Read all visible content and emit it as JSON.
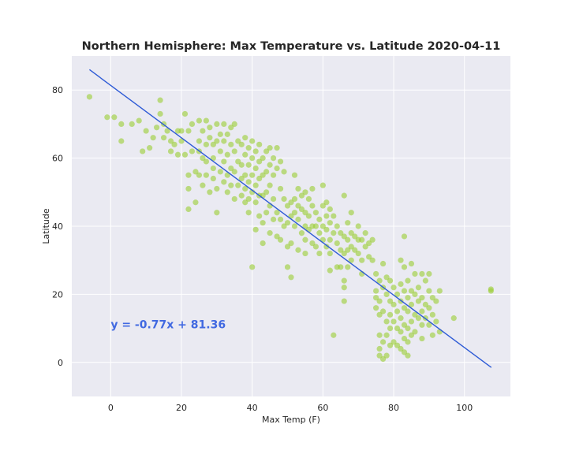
{
  "chart_data": {
    "type": "scatter",
    "title": "Northern Hemisphere: Max Temperature vs. Latitude 2020-04-11",
    "xlabel": "Max Temp (F)",
    "ylabel": "Latitude",
    "xlim": [
      -11,
      113
    ],
    "ylim": [
      -10,
      90
    ],
    "xticks": [
      0,
      20,
      40,
      60,
      80,
      100
    ],
    "yticks": [
      0,
      20,
      40,
      60,
      80
    ],
    "grid": true,
    "background": "#eaeaf2",
    "point_color": "#9acd32",
    "line_color": "#2e5bd6",
    "equation_color": "#4169e1",
    "regression": {
      "slope": -0.77,
      "intercept": 81.36,
      "x_range": [
        -6,
        107.6
      ]
    },
    "equation_text": "y = -0.77x + 81.36",
    "equation_anchor": [
      0,
      10
    ],
    "points": [
      [
        -6,
        78
      ],
      [
        -1,
        72
      ],
      [
        1,
        72
      ],
      [
        3,
        70
      ],
      [
        3,
        65
      ],
      [
        6,
        70
      ],
      [
        8,
        71
      ],
      [
        9,
        62
      ],
      [
        10,
        68
      ],
      [
        11,
        63
      ],
      [
        12,
        66
      ],
      [
        13,
        69
      ],
      [
        14,
        77
      ],
      [
        14,
        73
      ],
      [
        15,
        70
      ],
      [
        15,
        66
      ],
      [
        16,
        68
      ],
      [
        17,
        65
      ],
      [
        17,
        62
      ],
      [
        18,
        64
      ],
      [
        19,
        68
      ],
      [
        19,
        61
      ],
      [
        20,
        68
      ],
      [
        20,
        65
      ],
      [
        21,
        73
      ],
      [
        21,
        61
      ],
      [
        22,
        68
      ],
      [
        22,
        55
      ],
      [
        22,
        51
      ],
      [
        22,
        45
      ],
      [
        23,
        70
      ],
      [
        23,
        62
      ],
      [
        24,
        56
      ],
      [
        24,
        47
      ],
      [
        25,
        71
      ],
      [
        25,
        65
      ],
      [
        25,
        62
      ],
      [
        25,
        55
      ],
      [
        26,
        68
      ],
      [
        26,
        60
      ],
      [
        26,
        52
      ],
      [
        27,
        71
      ],
      [
        27,
        64
      ],
      [
        27,
        59
      ],
      [
        27,
        55
      ],
      [
        28,
        69
      ],
      [
        28,
        66
      ],
      [
        28,
        50
      ],
      [
        29,
        64
      ],
      [
        29,
        60
      ],
      [
        29,
        57
      ],
      [
        29,
        54
      ],
      [
        30,
        70
      ],
      [
        30,
        65
      ],
      [
        30,
        51
      ],
      [
        30,
        44
      ],
      [
        31,
        67
      ],
      [
        31,
        62
      ],
      [
        31,
        56
      ],
      [
        32,
        70
      ],
      [
        32,
        65
      ],
      [
        32,
        59
      ],
      [
        32,
        53
      ],
      [
        33,
        67
      ],
      [
        33,
        61
      ],
      [
        33,
        55
      ],
      [
        33,
        50
      ],
      [
        34,
        69
      ],
      [
        34,
        64
      ],
      [
        34,
        57
      ],
      [
        34,
        52
      ],
      [
        35,
        70
      ],
      [
        35,
        62
      ],
      [
        35,
        56
      ],
      [
        35,
        48
      ],
      [
        36,
        65
      ],
      [
        36,
        59
      ],
      [
        36,
        52
      ],
      [
        37,
        64
      ],
      [
        37,
        58
      ],
      [
        37,
        54
      ],
      [
        37,
        49
      ],
      [
        38,
        66
      ],
      [
        38,
        61
      ],
      [
        38,
        55
      ],
      [
        38,
        51
      ],
      [
        38,
        47
      ],
      [
        39,
        63
      ],
      [
        39,
        58
      ],
      [
        39,
        53
      ],
      [
        39,
        48
      ],
      [
        39,
        44
      ],
      [
        40,
        65
      ],
      [
        40,
        60
      ],
      [
        40,
        55
      ],
      [
        40,
        50
      ],
      [
        40,
        28
      ],
      [
        41,
        62
      ],
      [
        41,
        57
      ],
      [
        41,
        52
      ],
      [
        41,
        47
      ],
      [
        41,
        39
      ],
      [
        42,
        64
      ],
      [
        42,
        59
      ],
      [
        42,
        54
      ],
      [
        42,
        49
      ],
      [
        42,
        43
      ],
      [
        43,
        60
      ],
      [
        43,
        55
      ],
      [
        43,
        49
      ],
      [
        43,
        41
      ],
      [
        43,
        35
      ],
      [
        44,
        62
      ],
      [
        44,
        56
      ],
      [
        44,
        50
      ],
      [
        44,
        44
      ],
      [
        45,
        63
      ],
      [
        45,
        58
      ],
      [
        45,
        52
      ],
      [
        45,
        46
      ],
      [
        45,
        38
      ],
      [
        46,
        60
      ],
      [
        46,
        55
      ],
      [
        46,
        48
      ],
      [
        46,
        42
      ],
      [
        47,
        63
      ],
      [
        47,
        57
      ],
      [
        47,
        44
      ],
      [
        47,
        37
      ],
      [
        48,
        59
      ],
      [
        48,
        51
      ],
      [
        48,
        42
      ],
      [
        48,
        36
      ],
      [
        49,
        56
      ],
      [
        49,
        48
      ],
      [
        49,
        40
      ],
      [
        50,
        46
      ],
      [
        50,
        41
      ],
      [
        50,
        34
      ],
      [
        50,
        28
      ],
      [
        51,
        47
      ],
      [
        51,
        43
      ],
      [
        51,
        35
      ],
      [
        51,
        25
      ],
      [
        52,
        55
      ],
      [
        52,
        48
      ],
      [
        52,
        44
      ],
      [
        52,
        40
      ],
      [
        53,
        51
      ],
      [
        53,
        46
      ],
      [
        53,
        42
      ],
      [
        53,
        33
      ],
      [
        54,
        49
      ],
      [
        54,
        45
      ],
      [
        54,
        38
      ],
      [
        55,
        50
      ],
      [
        55,
        44
      ],
      [
        55,
        40
      ],
      [
        55,
        36
      ],
      [
        55,
        32
      ],
      [
        56,
        48
      ],
      [
        56,
        43
      ],
      [
        56,
        39
      ],
      [
        57,
        51
      ],
      [
        57,
        46
      ],
      [
        57,
        40
      ],
      [
        57,
        35
      ],
      [
        58,
        44
      ],
      [
        58,
        40
      ],
      [
        58,
        34
      ],
      [
        59,
        42
      ],
      [
        59,
        38
      ],
      [
        59,
        32
      ],
      [
        60,
        52
      ],
      [
        60,
        46
      ],
      [
        60,
        40
      ],
      [
        60,
        36
      ],
      [
        61,
        47
      ],
      [
        61,
        43
      ],
      [
        61,
        39
      ],
      [
        61,
        34
      ],
      [
        62,
        45
      ],
      [
        62,
        41
      ],
      [
        62,
        36
      ],
      [
        62,
        32
      ],
      [
        62,
        27
      ],
      [
        63,
        43
      ],
      [
        63,
        38
      ],
      [
        63,
        8
      ],
      [
        64,
        40
      ],
      [
        64,
        35
      ],
      [
        64,
        28
      ],
      [
        65,
        38
      ],
      [
        65,
        33
      ],
      [
        65,
        28
      ],
      [
        66,
        49
      ],
      [
        66,
        37
      ],
      [
        66,
        32
      ],
      [
        66,
        24
      ],
      [
        66,
        22
      ],
      [
        66,
        18
      ],
      [
        67,
        41
      ],
      [
        67,
        36
      ],
      [
        67,
        33
      ],
      [
        67,
        28
      ],
      [
        68,
        44
      ],
      [
        68,
        38
      ],
      [
        68,
        34
      ],
      [
        68,
        30
      ],
      [
        69,
        37
      ],
      [
        69,
        33
      ],
      [
        70,
        40
      ],
      [
        70,
        36
      ],
      [
        70,
        32
      ],
      [
        71,
        36
      ],
      [
        71,
        30
      ],
      [
        71,
        26
      ],
      [
        72,
        38
      ],
      [
        72,
        34
      ],
      [
        73,
        35
      ],
      [
        73,
        31
      ],
      [
        74,
        36
      ],
      [
        74,
        30
      ],
      [
        75,
        21
      ],
      [
        75,
        26
      ],
      [
        75,
        19
      ],
      [
        75,
        16
      ],
      [
        76,
        24
      ],
      [
        76,
        18
      ],
      [
        76,
        14
      ],
      [
        76,
        8
      ],
      [
        76,
        4
      ],
      [
        76,
        2
      ],
      [
        77,
        29
      ],
      [
        77,
        22
      ],
      [
        77,
        15
      ],
      [
        77,
        6
      ],
      [
        77,
        1
      ],
      [
        78,
        25
      ],
      [
        78,
        20
      ],
      [
        78,
        12
      ],
      [
        78,
        8
      ],
      [
        78,
        2
      ],
      [
        79,
        24
      ],
      [
        79,
        18
      ],
      [
        79,
        14
      ],
      [
        79,
        10
      ],
      [
        79,
        5
      ],
      [
        80,
        22
      ],
      [
        80,
        17
      ],
      [
        80,
        12
      ],
      [
        80,
        6
      ],
      [
        81,
        20
      ],
      [
        81,
        15
      ],
      [
        81,
        10
      ],
      [
        81,
        5
      ],
      [
        82,
        30
      ],
      [
        82,
        23
      ],
      [
        82,
        18
      ],
      [
        82,
        13
      ],
      [
        82,
        9
      ],
      [
        82,
        4
      ],
      [
        83,
        37
      ],
      [
        83,
        28
      ],
      [
        83,
        21
      ],
      [
        83,
        16
      ],
      [
        83,
        11
      ],
      [
        83,
        7
      ],
      [
        83,
        3
      ],
      [
        84,
        24
      ],
      [
        84,
        19
      ],
      [
        84,
        15
      ],
      [
        84,
        10
      ],
      [
        84,
        6
      ],
      [
        84,
        2
      ],
      [
        85,
        29
      ],
      [
        85,
        21
      ],
      [
        85,
        17
      ],
      [
        85,
        12
      ],
      [
        85,
        8
      ],
      [
        86,
        26
      ],
      [
        86,
        20
      ],
      [
        86,
        14
      ],
      [
        86,
        9
      ],
      [
        87,
        22
      ],
      [
        87,
        18
      ],
      [
        87,
        13
      ],
      [
        88,
        26
      ],
      [
        88,
        19
      ],
      [
        88,
        15
      ],
      [
        88,
        11
      ],
      [
        88,
        7
      ],
      [
        89,
        24
      ],
      [
        89,
        17
      ],
      [
        89,
        13
      ],
      [
        90,
        26
      ],
      [
        90,
        21
      ],
      [
        90,
        16
      ],
      [
        90,
        11
      ],
      [
        91,
        19
      ],
      [
        91,
        14
      ],
      [
        91,
        8
      ],
      [
        92,
        18
      ],
      [
        92,
        12
      ],
      [
        93,
        21
      ],
      [
        93,
        9
      ],
      [
        97,
        13
      ],
      [
        107.5,
        21
      ],
      [
        107.5,
        21.5
      ]
    ]
  }
}
